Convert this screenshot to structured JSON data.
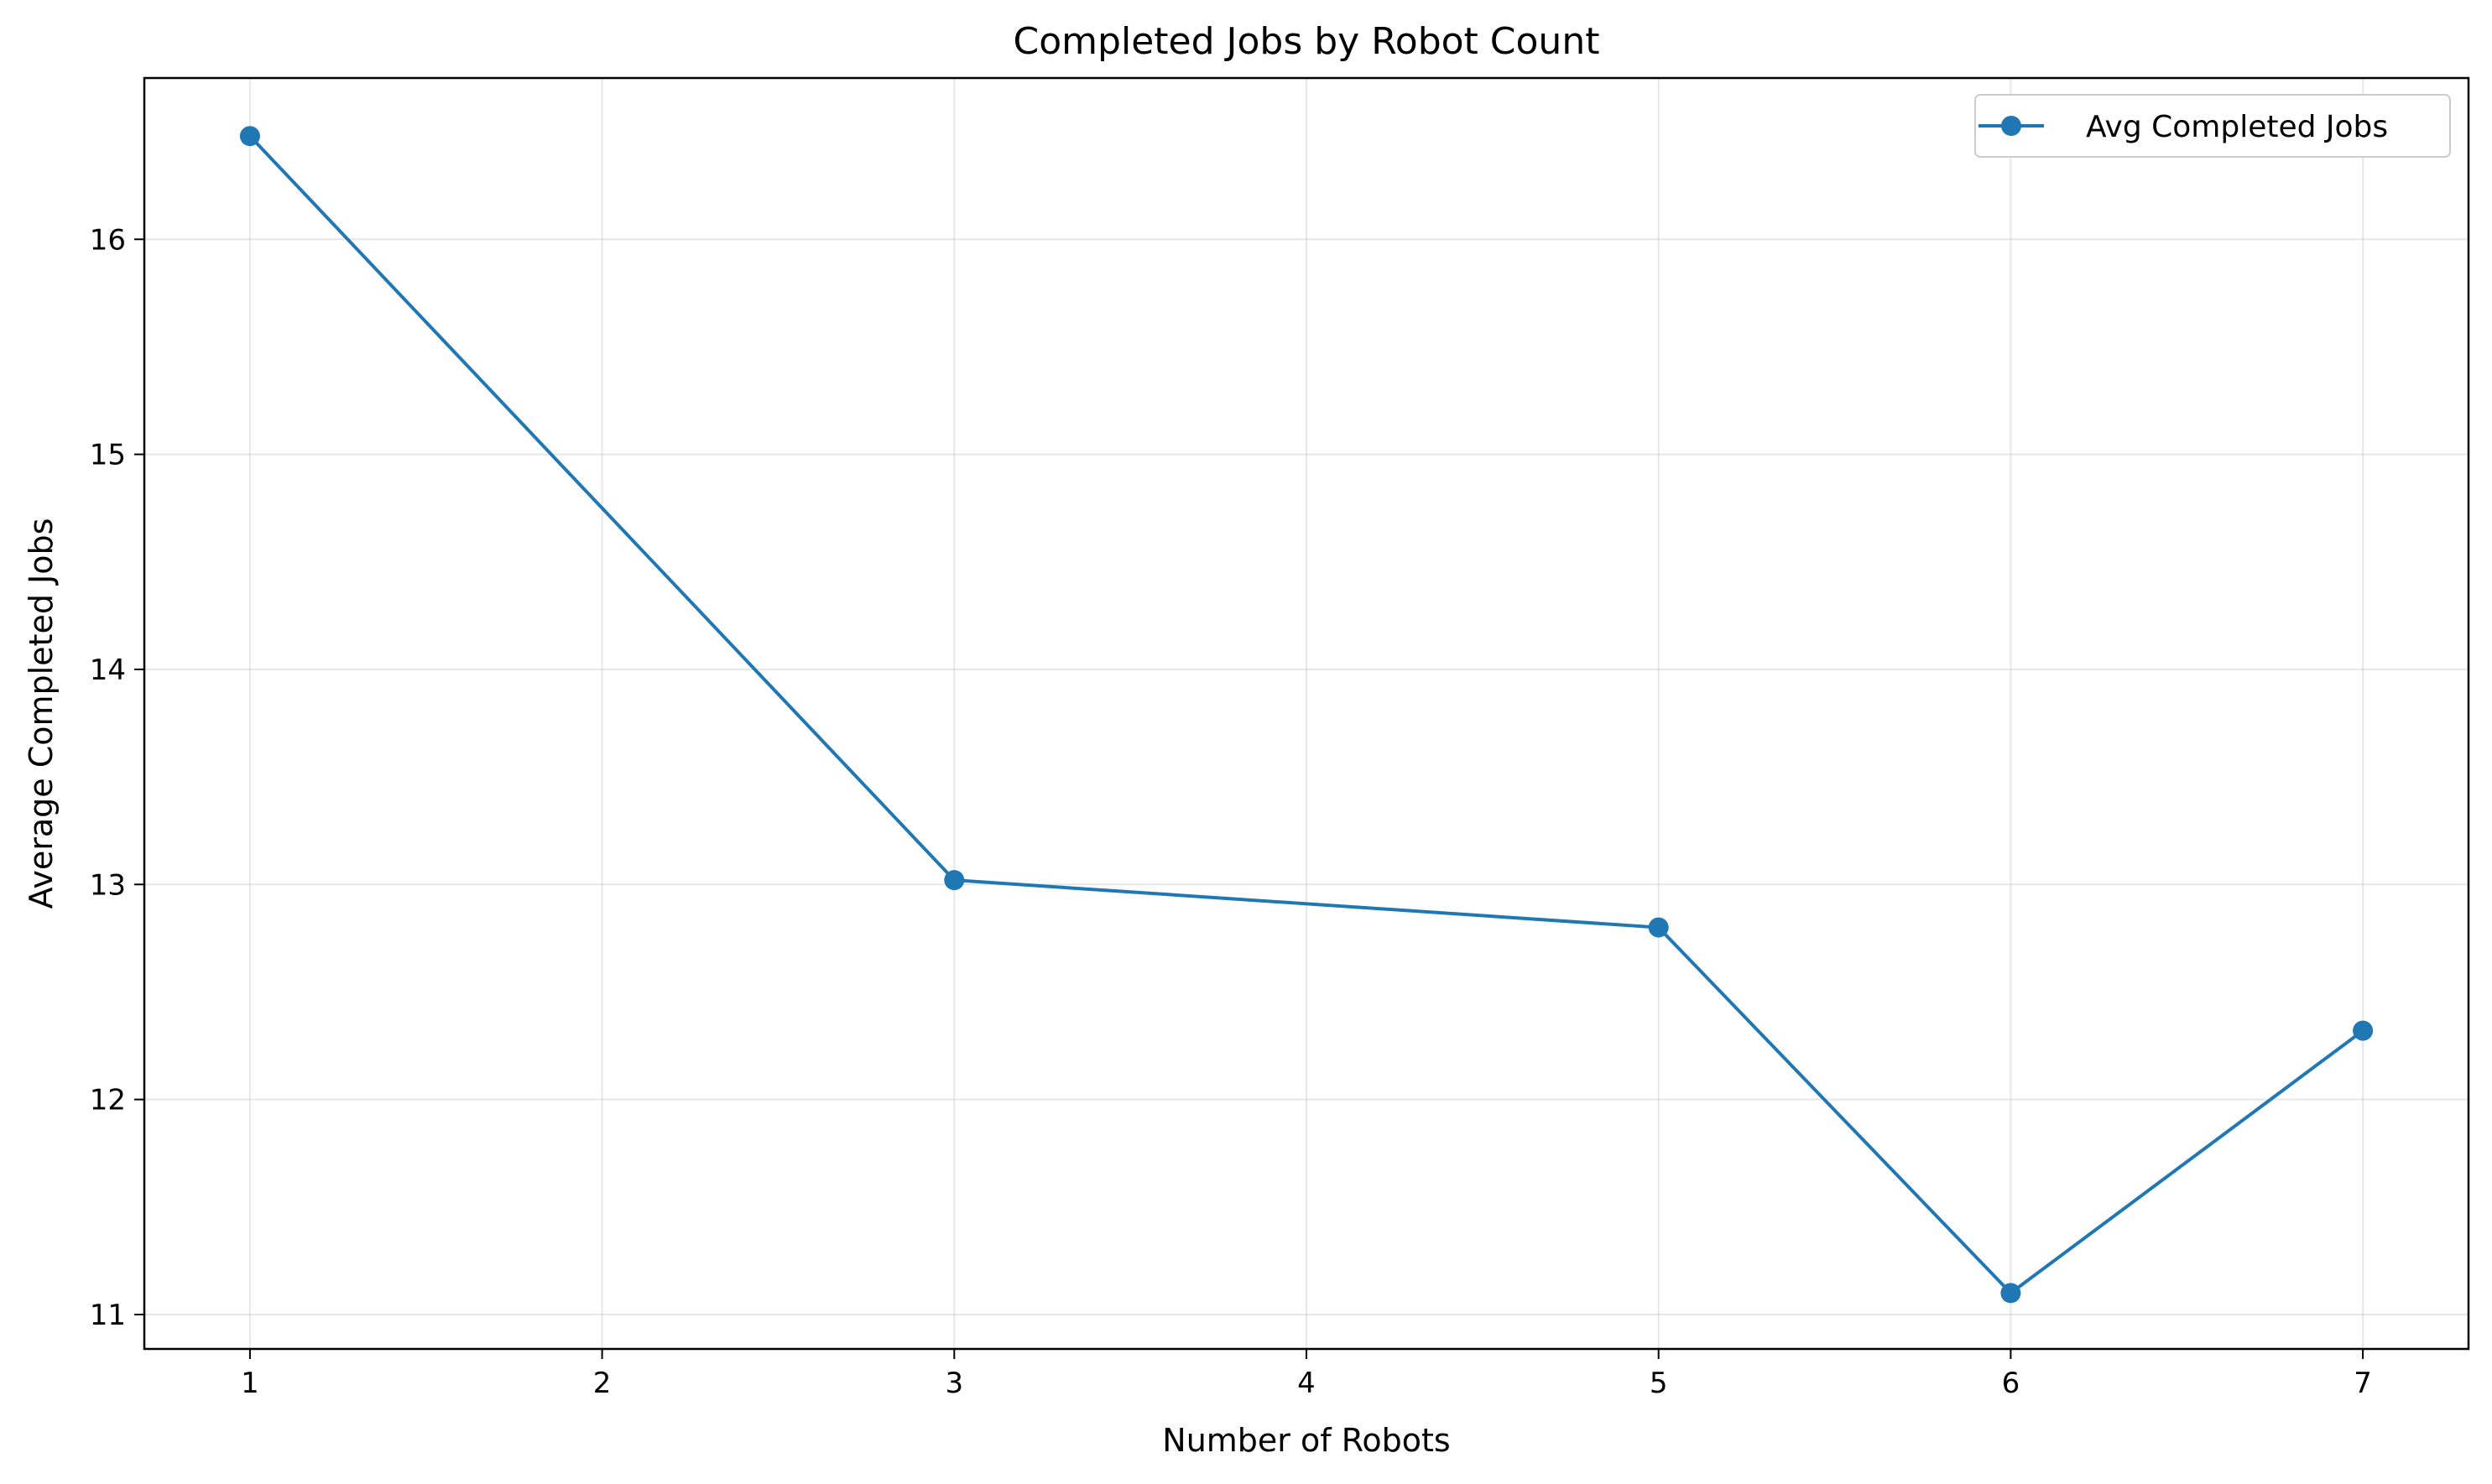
{
  "chart_data": {
    "type": "line",
    "title": "Completed Jobs by Robot Count",
    "xlabel": "Number of Robots",
    "ylabel": "Average Completed Jobs",
    "x": [
      1,
      3,
      5,
      6,
      7
    ],
    "series": [
      {
        "name": "Avg Completed Jobs",
        "values": [
          16.48,
          13.02,
          12.8,
          11.1,
          12.32
        ],
        "color": "#1f77b4",
        "marker": "circle"
      }
    ],
    "xticks": [
      1,
      2,
      3,
      4,
      5,
      6,
      7
    ],
    "yticks": [
      11,
      12,
      13,
      14,
      15,
      16
    ],
    "xlim": [
      0.7,
      7.3
    ],
    "ylim": [
      10.84,
      16.75
    ],
    "grid": true,
    "legend_position": "top-right"
  }
}
